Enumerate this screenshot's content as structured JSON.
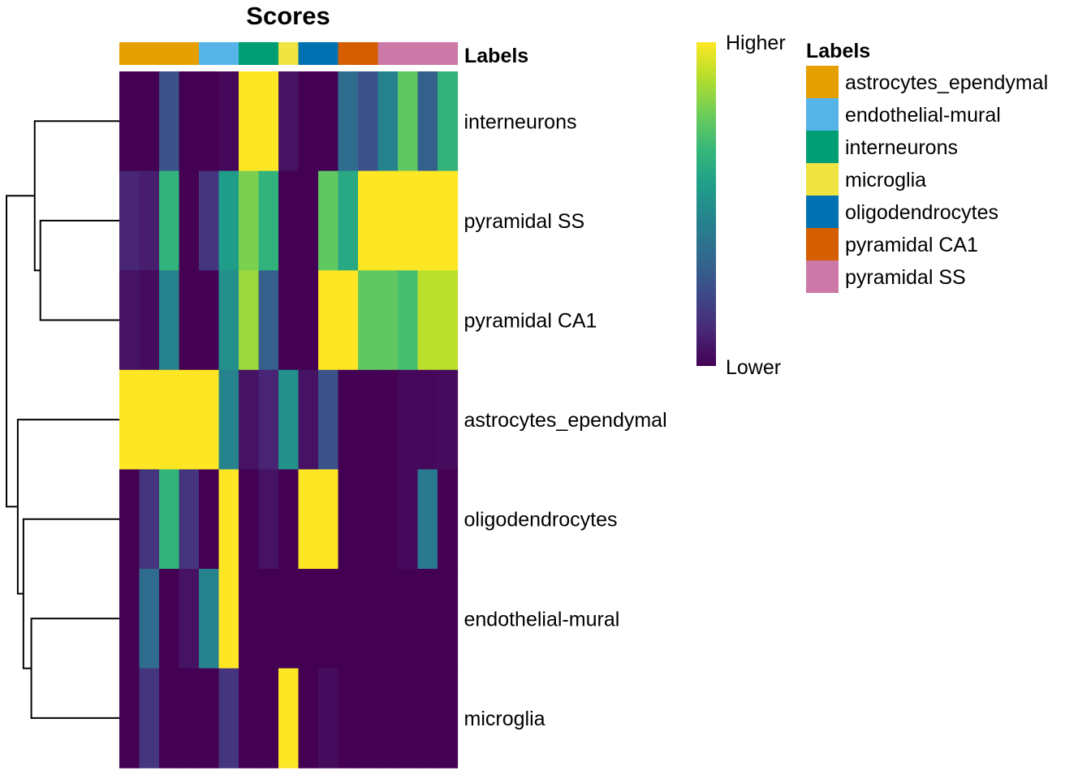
{
  "chart_data": {
    "type": "heatmap",
    "title": "Scores",
    "annotation_label": "Labels",
    "legend_title": "Labels",
    "colorbar": {
      "high_label": "Higher",
      "low_label": "Lower"
    },
    "column_labels": [
      "astrocytes_ependymal",
      "astrocytes_ependymal",
      "astrocytes_ependymal",
      "astrocytes_ependymal",
      "endothelial-mural",
      "endothelial-mural",
      "interneurons",
      "interneurons",
      "microglia",
      "oligodendrocytes",
      "oligodendrocytes",
      "pyramidal CA1",
      "pyramidal CA1",
      "pyramidal SS",
      "pyramidal SS",
      "pyramidal SS",
      "pyramidal SS"
    ],
    "rows": [
      "interneurons",
      "pyramidal SS",
      "pyramidal CA1",
      "astrocytes_ependymal",
      "oligodendrocytes",
      "endothelial-mural",
      "microglia"
    ],
    "values": [
      [
        0.0,
        0.0,
        0.25,
        0.0,
        0.0,
        0.02,
        1.0,
        1.0,
        0.05,
        0.0,
        0.0,
        0.35,
        0.25,
        0.45,
        0.75,
        0.3,
        0.65
      ],
      [
        0.1,
        0.08,
        0.65,
        0.0,
        0.15,
        0.55,
        0.8,
        0.65,
        0.0,
        0.0,
        0.75,
        0.6,
        1.0,
        1.0,
        1.0,
        1.0,
        1.0
      ],
      [
        0.05,
        0.03,
        0.45,
        0.0,
        0.0,
        0.5,
        0.85,
        0.3,
        0.0,
        0.0,
        1.0,
        1.0,
        0.75,
        0.75,
        0.7,
        0.9,
        0.9
      ],
      [
        1.0,
        1.0,
        1.0,
        1.0,
        1.0,
        0.45,
        0.05,
        0.1,
        0.5,
        0.05,
        0.25,
        0.0,
        0.0,
        0.0,
        0.02,
        0.02,
        0.03
      ],
      [
        0.0,
        0.15,
        0.65,
        0.15,
        0.0,
        1.0,
        0.0,
        0.05,
        0.0,
        1.0,
        1.0,
        0.0,
        0.0,
        0.0,
        0.02,
        0.4,
        0.0
      ],
      [
        0.0,
        0.35,
        0.0,
        0.05,
        0.45,
        1.0,
        0.0,
        0.0,
        0.0,
        0.0,
        0.0,
        0.0,
        0.0,
        0.0,
        0.0,
        0.0,
        0.0
      ],
      [
        0.0,
        0.15,
        0.0,
        0.0,
        0.0,
        0.15,
        0.0,
        0.0,
        1.0,
        0.0,
        0.03,
        0.0,
        0.0,
        0.0,
        0.0,
        0.0,
        0.0
      ]
    ],
    "label_colors": {
      "astrocytes_ependymal": "#E69F00",
      "endothelial-mural": "#56B4E9",
      "interneurons": "#009E73",
      "microglia": "#F0E442",
      "oligodendrocytes": "#0072B2",
      "pyramidal CA1": "#D55E00",
      "pyramidal SS": "#CC79A7"
    },
    "legend_entries": [
      "astrocytes_ependymal",
      "endothelial-mural",
      "interneurons",
      "microglia",
      "oligodendrocytes",
      "pyramidal CA1",
      "pyramidal SS"
    ],
    "dendrogram_merges": [
      [
        "pyramidal SS",
        "pyramidal CA1",
        0.7
      ],
      [
        "interneurons",
        "pyramidal SS|pyramidal CA1",
        0.75
      ],
      [
        "endothelial-mural",
        "microglia",
        0.78
      ],
      [
        "oligodendrocytes",
        "endothelial-mural|microglia",
        0.85
      ],
      [
        "astrocytes_ependymal",
        "oligodendrocytes|endothelial-mural|microglia",
        0.9
      ],
      [
        "interneurons|pyramidal SS|pyramidal CA1",
        "astrocytes_ependymal|oligodendrocytes|endothelial-mural|microglia",
        1.0
      ]
    ],
    "colormap": [
      "#440154",
      "#482878",
      "#3E4A89",
      "#31688E",
      "#26828E",
      "#1F9E89",
      "#35B779",
      "#6DCD59",
      "#B4DE2C",
      "#FDE725"
    ]
  }
}
